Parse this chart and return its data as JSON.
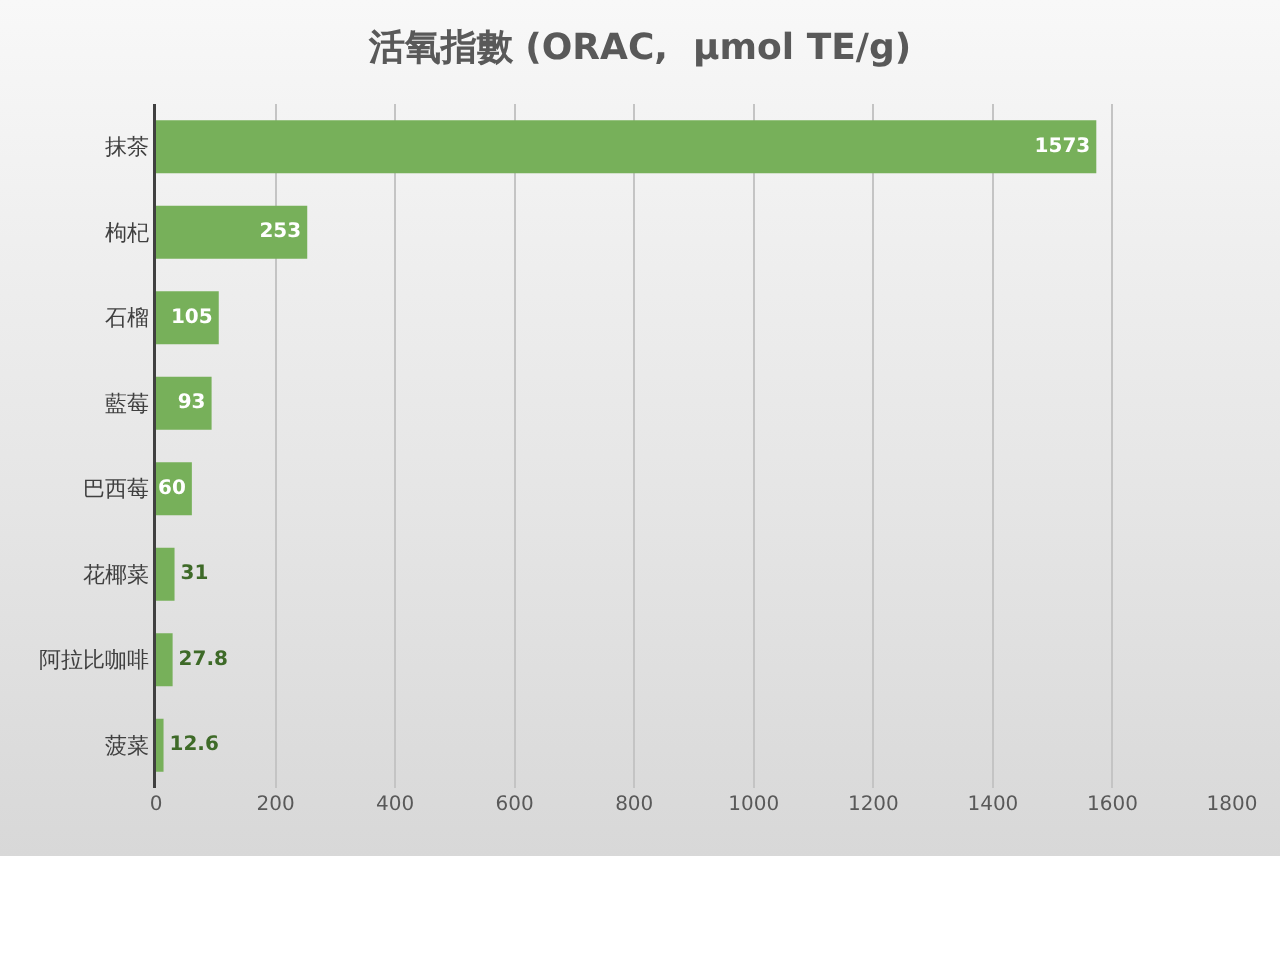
{
  "chart_data": {
    "type": "bar",
    "title": "活氧指數 (ORAC,  µmol TE/g)",
    "orientation": "horizontal",
    "categories": [
      "抹茶",
      "枸杞",
      "石榴",
      "藍莓",
      "巴西莓",
      "花椰菜",
      "阿拉比咖啡",
      "菠菜"
    ],
    "values": [
      1573,
      253,
      105,
      93,
      60,
      31,
      27.8,
      12.6
    ],
    "color": "#77b05a",
    "xlim": [
      0,
      1800
    ],
    "xticks": [
      0,
      200,
      400,
      600,
      800,
      1000,
      1200,
      1400,
      1600,
      1800
    ],
    "grid": "x",
    "data_labels": true
  }
}
